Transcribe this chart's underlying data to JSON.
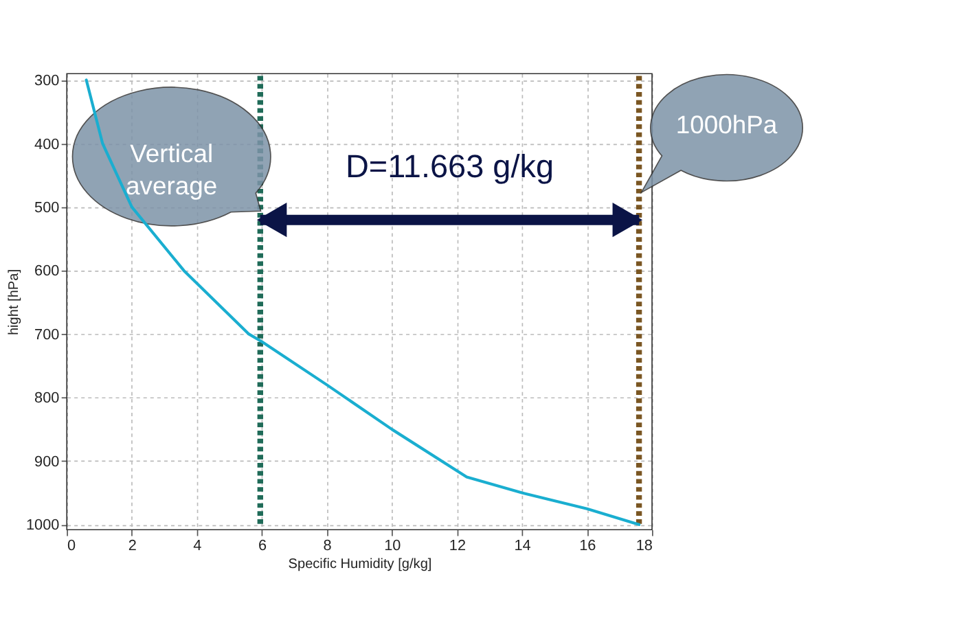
{
  "chart_data": {
    "type": "line",
    "xlabel": "Specific Humidity [g/kg]",
    "ylabel": "hight [hPa]",
    "x": [
      0.6,
      1.1,
      2.0,
      3.6,
      5.6,
      6.0,
      8.0,
      10.0,
      12.3,
      14.0,
      16.0,
      17.6
    ],
    "series": [
      {
        "color": "#1aaed0",
        "values": [
          300,
          400,
          500,
          600,
          700,
          712,
          780,
          850,
          925,
          950,
          975,
          1000
        ]
      }
    ],
    "xlim": [
      0,
      18
    ],
    "xticks": [
      0,
      2,
      4,
      6,
      8,
      10,
      12,
      14,
      16,
      18
    ],
    "ylim": [
      1008,
      290
    ],
    "yticks": [
      300,
      400,
      500,
      600,
      700,
      800,
      900,
      {
        "value": 1000,
        "label": "1000"
      }
    ],
    "grid": true,
    "line_style": "solid",
    "marker": "none",
    "ref_lines": [
      {
        "axis": "x",
        "value": 5.95,
        "label": "Vertical average",
        "color": "#1f6b58",
        "line_style": "dotted"
      },
      {
        "axis": "x",
        "value": 17.6,
        "label": "1000hPa",
        "color": "#7a5622",
        "line_style": "dotted"
      }
    ],
    "annotations": [
      "D=11.663 g/kg"
    ]
  }
}
